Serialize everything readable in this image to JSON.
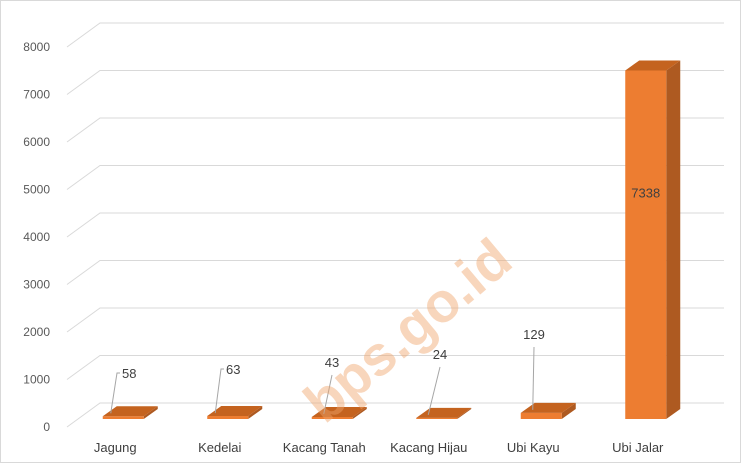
{
  "chart_data": {
    "type": "bar",
    "style": "3d-column",
    "categories": [
      "Jagung",
      "Kedelai",
      "Kacang Tanah",
      "Kacang Hijau",
      "Ubi Kayu",
      "Ubi Jalar"
    ],
    "values": [
      58,
      63,
      43,
      24,
      129,
      7338
    ],
    "value_labels": [
      "58",
      "63",
      "43",
      "24",
      "129",
      "7338"
    ],
    "y_ticks": [
      "0",
      "1000",
      "2000",
      "3000",
      "4000",
      "5000",
      "6000",
      "7000",
      "8000"
    ],
    "ylim": [
      0,
      8000
    ],
    "title": "",
    "xlabel": "",
    "ylabel": "",
    "grid": true,
    "legend": "none",
    "watermark": "bps.go.id",
    "colors": {
      "bar_front": "#ed7d31",
      "bar_top": "#c4631f",
      "bar_side": "#ae5a21",
      "grid": "#d9d9d9"
    }
  }
}
